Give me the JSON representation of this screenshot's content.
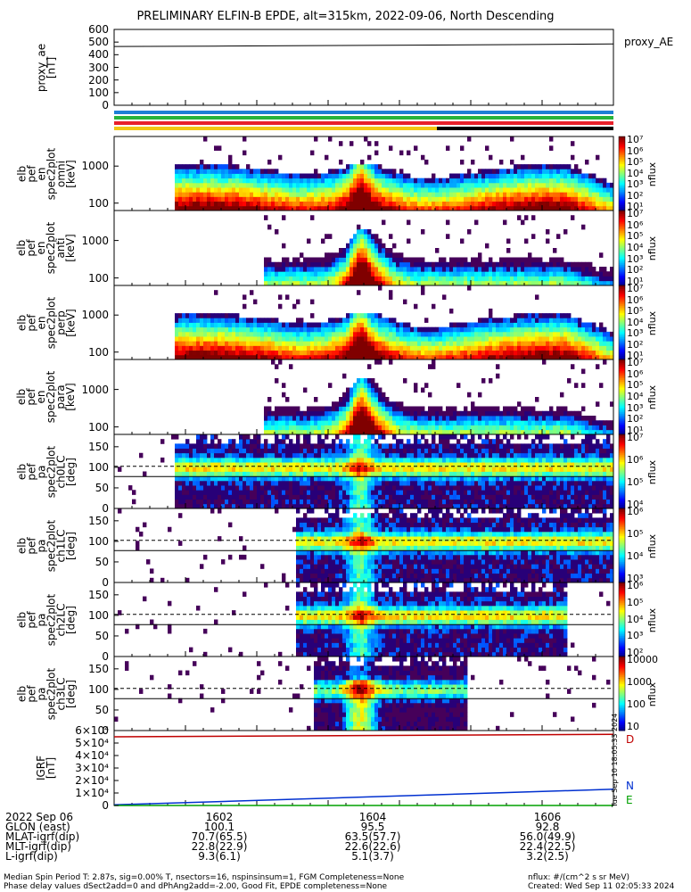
{
  "title": "PRELIMINARY ELFIN-B EPDE, alt=315km, 2022-09-06, North Descending",
  "panels": [
    {
      "id": "ae",
      "ylabel": [
        "proxy_ae",
        "[nT]"
      ],
      "yticks": [
        "600",
        "500",
        "400",
        "300",
        "200",
        "100",
        "0"
      ],
      "legend": "proxy_AE"
    },
    {
      "id": "en-omni",
      "ylabel": [
        "elb",
        "pef",
        "en",
        "spec2plot",
        "omni",
        "[keV]"
      ],
      "yticks": [
        "1000",
        "100"
      ],
      "cbticks": [
        "10⁷",
        "10⁶",
        "10⁵",
        "10⁴",
        "10³",
        "10²",
        "10¹"
      ],
      "cblabel": "nflux"
    },
    {
      "id": "en-anti",
      "ylabel": [
        "elb",
        "pef",
        "en",
        "spec2plot",
        "anti",
        "[keV]"
      ],
      "yticks": [
        "1000",
        "100"
      ],
      "cbticks": [
        "10⁷",
        "10⁶",
        "10⁵",
        "10⁴",
        "10³",
        "10²",
        "10¹"
      ],
      "cblabel": "nflux"
    },
    {
      "id": "en-perp",
      "ylabel": [
        "elb",
        "pef",
        "en",
        "spec2plot",
        "perp",
        "[keV]"
      ],
      "yticks": [
        "1000",
        "100"
      ],
      "cbticks": [
        "10⁷",
        "10⁶",
        "10⁵",
        "10⁴",
        "10³",
        "10²",
        "10¹"
      ],
      "cblabel": "nflux"
    },
    {
      "id": "en-para",
      "ylabel": [
        "elb",
        "pef",
        "en",
        "spec2plot",
        "para",
        "[keV]"
      ],
      "yticks": [
        "1000",
        "100"
      ],
      "cbticks": [
        "10⁷",
        "10⁶",
        "10⁵",
        "10⁴",
        "10³",
        "10²",
        "10¹"
      ],
      "cblabel": "nflux"
    },
    {
      "id": "pa-ch0",
      "ylabel": [
        "elb",
        "pef",
        "pa",
        "spec2plot",
        "ch0LC",
        "[deg]"
      ],
      "yticks": [
        "150",
        "100",
        "50",
        "0"
      ],
      "cbticks": [
        "10⁷",
        "10⁶",
        "10⁵",
        "10⁴"
      ],
      "cblabel": "nflux"
    },
    {
      "id": "pa-ch1",
      "ylabel": [
        "elb",
        "pef",
        "pa",
        "spec2plot",
        "ch1LC",
        "[deg]"
      ],
      "yticks": [
        "150",
        "100",
        "50",
        "0"
      ],
      "cbticks": [
        "10⁶",
        "10⁵",
        "10⁴",
        "10³"
      ],
      "cblabel": "nflux"
    },
    {
      "id": "pa-ch2",
      "ylabel": [
        "elb",
        "pef",
        "pa",
        "spec2plot",
        "ch2LC",
        "[deg]"
      ],
      "yticks": [
        "150",
        "100",
        "50",
        "0"
      ],
      "cbticks": [
        "10⁶",
        "10⁵",
        "10⁴",
        "10³",
        "10²"
      ],
      "cblabel": "nflux"
    },
    {
      "id": "pa-ch3",
      "ylabel": [
        "elb",
        "pef",
        "pa",
        "spec2plot",
        "ch3LC",
        "[deg]"
      ],
      "yticks": [
        "150",
        "100",
        "50",
        "0"
      ],
      "cbticks": [
        "10000",
        "1000",
        "100",
        "10"
      ],
      "cblabel": "nflux"
    },
    {
      "id": "igrf",
      "ylabel": [
        "IGRF",
        "[nT]"
      ],
      "yticks": [
        "6×10⁴",
        "5×10⁴",
        "4×10⁴",
        "3×10⁴",
        "2×10⁴",
        "1×10⁴",
        "0"
      ],
      "legend": [
        "D",
        "N",
        "E"
      ]
    }
  ],
  "xaxis": {
    "rows": [
      {
        "label": "2022 Sep 06",
        "values": [
          "1602",
          "1604",
          "1606"
        ]
      },
      {
        "label": "GLON (east)",
        "values": [
          "100.1",
          "95.5",
          "92.8"
        ]
      },
      {
        "label": "MLAT-igrf(dip)",
        "values": [
          "70.7(65.5)",
          "63.5(57.7)",
          "56.0(49.9)"
        ]
      },
      {
        "label": "MLT-igrf(dip)",
        "values": [
          "22.8(22.9)",
          "22.6(22.6)",
          "22.4(22.5)"
        ]
      },
      {
        "label": "L-igrf(dip)",
        "values": [
          "9.3(6.1)",
          "5.1(3.7)",
          "3.2(2.5)"
        ]
      }
    ]
  },
  "footer": {
    "left1": "Median Spin Period T: 2.87s, sig=0.00% T, nsectors=16, nspinsinsum=1, FGM Completeness=None",
    "left2": "Phase delay values dSect2add=0 and dPhAng2add=-2.00, Good Fit, EPDE completeness=None",
    "right1": "nflux: #/(cm^2 s sr MeV)",
    "right2": "Created: Wed Sep 11 02:05:33 2024",
    "side": "Tue Sep 10 18:05:33 2024"
  },
  "chart_data": [
    {
      "type": "line",
      "title": "proxy_ae",
      "ylim": [
        0,
        600
      ],
      "series": [
        {
          "name": "proxy_AE",
          "values": [
            465,
            468,
            472,
            476,
            480,
            485
          ]
        }
      ],
      "x": [
        "1600.6",
        "1602",
        "1603",
        "1604",
        "1605",
        "1606.8"
      ]
    },
    {
      "type": "heatmap",
      "panel": "en omni",
      "y_scale": "log",
      "ylim": [
        63,
        7000
      ],
      "colorbar": "nflux",
      "cbrange": [
        10,
        10000000
      ]
    },
    {
      "type": "heatmap",
      "panel": "en anti",
      "y_scale": "log",
      "ylim": [
        63,
        7000
      ],
      "colorbar": "nflux",
      "cbrange": [
        10,
        10000000
      ]
    },
    {
      "type": "heatmap",
      "panel": "en perp",
      "y_scale": "log",
      "ylim": [
        63,
        7000
      ],
      "colorbar": "nflux",
      "cbrange": [
        10,
        10000000
      ]
    },
    {
      "type": "heatmap",
      "panel": "en para",
      "y_scale": "log",
      "ylim": [
        63,
        7000
      ],
      "colorbar": "nflux",
      "cbrange": [
        10,
        10000000
      ]
    },
    {
      "type": "heatmap",
      "panel": "pa ch0LC",
      "ylim": [
        0,
        180
      ],
      "colorbar": "nflux",
      "cbrange": [
        3000,
        10000000
      ]
    },
    {
      "type": "heatmap",
      "panel": "pa ch1LC",
      "ylim": [
        0,
        180
      ],
      "colorbar": "nflux",
      "cbrange": [
        1000,
        3000000
      ]
    },
    {
      "type": "heatmap",
      "panel": "pa ch2LC",
      "ylim": [
        0,
        180
      ],
      "colorbar": "nflux",
      "cbrange": [
        100,
        3000000
      ]
    },
    {
      "type": "heatmap",
      "panel": "pa ch3LC",
      "ylim": [
        0,
        180
      ],
      "colorbar": "nflux",
      "cbrange": [
        10,
        20000
      ]
    },
    {
      "type": "line",
      "title": "IGRF",
      "ylim": [
        0,
        60000
      ],
      "x": [
        "1600.6",
        "1606.8"
      ],
      "series": [
        {
          "name": "D",
          "values": [
            55000,
            57000
          ]
        },
        {
          "name": "N",
          "values": [
            500,
            13000
          ]
        },
        {
          "name": "E",
          "values": [
            0,
            0
          ]
        }
      ]
    }
  ]
}
